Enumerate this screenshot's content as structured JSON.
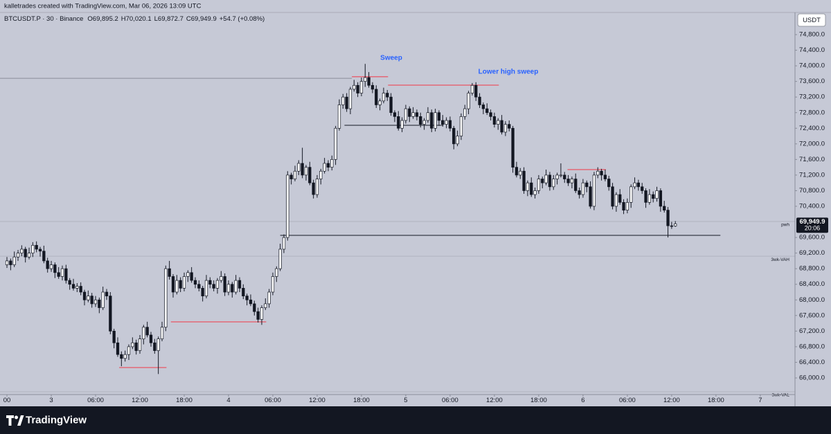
{
  "header": {
    "attribution": "kalletrades created with TradingView.com, Mar 06, 2026 13:09 UTC"
  },
  "chart_data": {
    "type": "candlestick",
    "symbol": "BTCUSDT.P · 30 · Binance",
    "ohlc_legend": [
      "O69,895.2",
      "H70,020.1",
      "L69,872.7",
      "C69,949.9",
      "+54.7 (+0.08%)"
    ],
    "currency": "USDT",
    "up_color": "#ffffff",
    "down_color": "#131722",
    "wick_color": "#131722",
    "grid": false,
    "xlim": [
      -0.94,
      106.7
    ],
    "xticks": [
      {
        "value": 0,
        "label": "00"
      },
      {
        "value": 6,
        "label": "3"
      },
      {
        "value": 12,
        "label": "06:00"
      },
      {
        "value": 18,
        "label": "12:00"
      },
      {
        "value": 24,
        "label": "18:00"
      },
      {
        "value": 30,
        "label": "4"
      },
      {
        "value": 36,
        "label": "06:00"
      },
      {
        "value": 42,
        "label": "12:00"
      },
      {
        "value": 48,
        "label": "18:00"
      },
      {
        "value": 54,
        "label": "5"
      },
      {
        "value": 60,
        "label": "06:00"
      },
      {
        "value": 66,
        "label": "12:00"
      },
      {
        "value": 72,
        "label": "18:00"
      },
      {
        "value": 78,
        "label": "6"
      },
      {
        "value": 84,
        "label": "06:00"
      },
      {
        "value": 90,
        "label": "12:00"
      },
      {
        "value": 96,
        "label": "18:00"
      },
      {
        "value": 102,
        "label": "7"
      }
    ],
    "ylim": [
      65574,
      75368
    ],
    "yticks": [
      {
        "value": 66000,
        "label": "66,000.0"
      },
      {
        "value": 66400,
        "label": "66,400.0"
      },
      {
        "value": 66800,
        "label": "66,800.0"
      },
      {
        "value": 67200,
        "label": "67,200.0"
      },
      {
        "value": 67600,
        "label": "67,600.0"
      },
      {
        "value": 68000,
        "label": "68,000.0"
      },
      {
        "value": 68400,
        "label": "68,400.0"
      },
      {
        "value": 68800,
        "label": "68,800.0"
      },
      {
        "value": 69200,
        "label": "69,200.0"
      },
      {
        "value": 69600,
        "label": "69,600.0"
      },
      {
        "value": 70400,
        "label": "70,400.0"
      },
      {
        "value": 70800,
        "label": "70,800.0"
      },
      {
        "value": 71200,
        "label": "71,200.0"
      },
      {
        "value": 71600,
        "label": "71,600.0"
      },
      {
        "value": 72000,
        "label": "72,000.0"
      },
      {
        "value": 72400,
        "label": "72,400.0"
      },
      {
        "value": 72800,
        "label": "72,800.0"
      },
      {
        "value": 73200,
        "label": "73,200.0"
      },
      {
        "value": 73600,
        "label": "73,600.0"
      },
      {
        "value": 74000,
        "label": "74,000.0"
      },
      {
        "value": 74400,
        "label": "74,400.0"
      },
      {
        "value": 74800,
        "label": "74,800.0"
      }
    ],
    "x": [
      0,
      0.5,
      1,
      1.5,
      2,
      2.5,
      3,
      3.5,
      4,
      4.5,
      5,
      5.5,
      6,
      6.5,
      7,
      7.5,
      8,
      8.5,
      9,
      9.5,
      10,
      10.5,
      11,
      11.5,
      12,
      12.5,
      13,
      13.5,
      14,
      14.5,
      15,
      15.5,
      16,
      16.5,
      17,
      17.5,
      18,
      18.5,
      19,
      19.5,
      20,
      20.5,
      21,
      21.5,
      22,
      22.5,
      23,
      23.5,
      24,
      24.5,
      25,
      25.5,
      26,
      26.5,
      27,
      27.5,
      28,
      28.5,
      29,
      29.5,
      30,
      30.5,
      31,
      31.5,
      32,
      32.5,
      33,
      33.5,
      34,
      34.5,
      35,
      35.5,
      36,
      36.5,
      37,
      37.5,
      38,
      38.5,
      39,
      39.5,
      40,
      40.5,
      41,
      41.5,
      42,
      42.5,
      43,
      43.5,
      44,
      44.5,
      45,
      45.5,
      46,
      46.5,
      47,
      47.5,
      48,
      48.5,
      49,
      49.5,
      50,
      50.5,
      51,
      51.5,
      52,
      52.5,
      53,
      53.5,
      54,
      54.5,
      55,
      55.5,
      56,
      56.5,
      57,
      57.5,
      58,
      58.5,
      59,
      59.5,
      60,
      60.5,
      61,
      61.5,
      62,
      62.5,
      63,
      63.5,
      64,
      64.5,
      65,
      65.5,
      66,
      66.5,
      67,
      67.5,
      68,
      68.5,
      69,
      69.5,
      70,
      70.5,
      71,
      71.5,
      72,
      72.5,
      73,
      73.5,
      74,
      74.5,
      75,
      75.5,
      76,
      76.5,
      77,
      77.5,
      78,
      78.5,
      79,
      79.5,
      80,
      80.5,
      81,
      81.5,
      82,
      82.5,
      83,
      83.5,
      84,
      84.5,
      85,
      85.5,
      86,
      86.5,
      87,
      87.5,
      88,
      88.5,
      89,
      89.5,
      90,
      90.5
    ],
    "open": [
      68900,
      69000,
      68900,
      69100,
      69200,
      69300,
      69100,
      69200,
      69400,
      69300,
      69250,
      69000,
      68800,
      68900,
      68700,
      68600,
      68800,
      68500,
      68400,
      68300,
      68350,
      68200,
      68000,
      68100,
      67900,
      68000,
      67800,
      68200,
      68100,
      67200,
      66900,
      66600,
      66500,
      66600,
      66800,
      66900,
      66700,
      67000,
      67300,
      67100,
      66900,
      66700,
      67000,
      67300,
      68800,
      68600,
      68200,
      68500,
      68300,
      68600,
      68700,
      68500,
      68400,
      68300,
      68100,
      68500,
      68400,
      68300,
      68500,
      68600,
      68200,
      68400,
      68200,
      68500,
      68300,
      68100,
      68000,
      67900,
      67700,
      67500,
      67800,
      67900,
      68200,
      68600,
      68800,
      69300,
      69600,
      71200,
      71100,
      71300,
      71500,
      71200,
      71400,
      71000,
      70700,
      71100,
      71300,
      71500,
      71400,
      71600,
      72400,
      73000,
      73200,
      72900,
      73400,
      73500,
      73300,
      73600,
      73700,
      73500,
      73400,
      73000,
      73100,
      73300,
      73200,
      72800,
      72700,
      72400,
      72600,
      72900,
      72700,
      72800,
      72700,
      72500,
      72600,
      72800,
      72400,
      72800,
      72600,
      72500,
      72600,
      72400,
      72000,
      72200,
      72700,
      72900,
      73300,
      73500,
      73200,
      73000,
      72900,
      72800,
      72700,
      72500,
      72600,
      72300,
      72500,
      72400,
      71400,
      71200,
      71300,
      70800,
      71000,
      70700,
      70800,
      71100,
      71000,
      71200,
      70900,
      71100,
      71200,
      71200,
      71100,
      71000,
      71100,
      70800,
      70700,
      71000,
      70900,
      70400,
      71200,
      71300,
      71200,
      71100,
      70900,
      70400,
      70700,
      70500,
      70300,
      70500,
      70900,
      71000,
      70900,
      70800,
      70500,
      70700,
      70600,
      70800,
      70400,
      70300,
      69900,
      69895.2
    ],
    "high": [
      69100,
      69060,
      69240,
      69280,
      69400,
      69360,
      69340,
      69480,
      69500,
      69360,
      69390,
      69080,
      69000,
      68960,
      68840,
      68880,
      68900,
      68560,
      68540,
      68430,
      68450,
      68260,
      68240,
      68180,
      68100,
      68060,
      68340,
      68280,
      68200,
      67260,
      67040,
      66680,
      66700,
      66860,
      67040,
      66980,
      67100,
      67360,
      67440,
      67180,
      67000,
      67060,
      67440,
      68880,
      69000,
      68660,
      68640,
      68580,
      68700,
      68760,
      68840,
      68580,
      68500,
      68360,
      68640,
      68580,
      68500,
      68560,
      68740,
      68680,
      68500,
      68460,
      68640,
      68580,
      68400,
      68160,
      68140,
      67980,
      67800,
      67860,
      68040,
      68280,
      68700,
      68860,
      69440,
      69680,
      71300,
      71260,
      71440,
      71580,
      71900,
      71460,
      71540,
      71080,
      71200,
      71360,
      71640,
      71580,
      71700,
      72460,
      73140,
      73280,
      73300,
      73460,
      73640,
      73580,
      73700,
      74050,
      73840,
      73580,
      73500,
      73160,
      73440,
      73380,
      73300,
      72860,
      72840,
      72680,
      73000,
      72960,
      72940,
      72880,
      72800,
      72660,
      72940,
      72880,
      72900,
      72860,
      72740,
      72680,
      72700,
      72460,
      72340,
      72780,
      73000,
      73360,
      73560,
      73580,
      73300,
      73060,
      73040,
      72880,
      72800,
      72660,
      72740,
      72580,
      72600,
      72460,
      71540,
      71380,
      71400,
      71060,
      71140,
      70880,
      71200,
      71160,
      71340,
      71280,
      71200,
      71260,
      71500,
      71280,
      71200,
      71160,
      71240,
      70880,
      71100,
      71060,
      71040,
      71280,
      71400,
      71360,
      71340,
      71180,
      71000,
      70760,
      70840,
      70580,
      70600,
      70960,
      71140,
      71080,
      71000,
      70860,
      70840,
      70780,
      70900,
      70860,
      70540,
      70380,
      70000,
      70020.1
    ],
    "low": [
      68820,
      68760,
      68840,
      69000,
      69120,
      68960,
      69040,
      69100,
      69220,
      69110,
      68940,
      68700,
      68720,
      68560,
      68540,
      68500,
      68420,
      68260,
      68240,
      68200,
      68120,
      67860,
      67940,
      67800,
      67820,
      67660,
      67740,
      68000,
      67120,
      66760,
      66540,
      66300,
      66420,
      66460,
      66740,
      66600,
      66620,
      66860,
      67040,
      66800,
      66620,
      66100,
      66940,
      67200,
      68520,
      68060,
      68140,
      68200,
      68220,
      68460,
      68440,
      68300,
      68220,
      67960,
      68040,
      68300,
      68220,
      68160,
      68440,
      68100,
      68120,
      68060,
      68140,
      68200,
      68020,
      67860,
      67840,
      67600,
      67420,
      67360,
      67740,
      67800,
      68120,
      68460,
      68740,
      69200,
      69520,
      70960,
      71040,
      71200,
      71120,
      71060,
      70940,
      70600,
      70620,
      70960,
      71240,
      71300,
      71320,
      71460,
      72340,
      72900,
      72820,
      72760,
      73340,
      73200,
      73220,
      73460,
      73440,
      73300,
      72920,
      72860,
      73040,
      73100,
      72720,
      72560,
      72340,
      72300,
      72520,
      72560,
      72640,
      72600,
      72420,
      72360,
      72540,
      72300,
      72320,
      72460,
      72440,
      72400,
      72320,
      71860,
      71940,
      72100,
      72620,
      72760,
      73240,
      73100,
      72920,
      72760,
      72740,
      72600,
      72420,
      72360,
      72240,
      72200,
      72320,
      71260,
      71140,
      71100,
      70720,
      70660,
      70640,
      70600,
      70720,
      70860,
      70940,
      70800,
      70820,
      70960,
      71140,
      71000,
      70920,
      70860,
      70740,
      70600,
      70620,
      70760,
      70340,
      70300,
      71120,
      71060,
      71040,
      70800,
      70320,
      70260,
      70440,
      70200,
      70220,
      70360,
      70840,
      70800,
      70720,
      70360,
      70440,
      70500,
      70520,
      70260,
      70240,
      69600,
      69820,
      69872.7
    ],
    "close": [
      69000,
      68900,
      69100,
      69200,
      69300,
      69100,
      69200,
      69400,
      69300,
      69250,
      69000,
      68800,
      68900,
      68700,
      68600,
      68800,
      68500,
      68400,
      68300,
      68350,
      68200,
      68000,
      68100,
      67900,
      68000,
      67800,
      68200,
      68100,
      67200,
      66900,
      66600,
      66500,
      66600,
      66800,
      66900,
      66700,
      67000,
      67300,
      67100,
      66900,
      66700,
      67000,
      67300,
      68800,
      68600,
      68200,
      68500,
      68300,
      68600,
      68700,
      68500,
      68400,
      68300,
      68100,
      68500,
      68400,
      68300,
      68500,
      68600,
      68200,
      68400,
      68200,
      68500,
      68300,
      68100,
      68000,
      67900,
      67700,
      67500,
      67800,
      67900,
      68200,
      68600,
      68800,
      69300,
      69600,
      71200,
      71100,
      71300,
      71500,
      71200,
      71400,
      71000,
      70700,
      71100,
      71300,
      71500,
      71400,
      71600,
      72400,
      73000,
      73200,
      72900,
      73400,
      73500,
      73300,
      73600,
      73700,
      73500,
      73400,
      73000,
      73100,
      73300,
      73200,
      72800,
      72700,
      72400,
      72600,
      72900,
      72700,
      72800,
      72700,
      72500,
      72600,
      72800,
      72400,
      72800,
      72600,
      72500,
      72600,
      72400,
      72000,
      72200,
      72700,
      72900,
      73300,
      73500,
      73200,
      73000,
      72900,
      72800,
      72700,
      72500,
      72600,
      72300,
      72500,
      72400,
      71400,
      71200,
      71300,
      70800,
      71000,
      70700,
      70800,
      71100,
      71000,
      71200,
      70900,
      71100,
      71200,
      71200,
      71100,
      71000,
      71100,
      70800,
      70700,
      71000,
      70900,
      70400,
      71200,
      71300,
      71200,
      71100,
      70900,
      70400,
      70700,
      70500,
      70300,
      70500,
      70900,
      71000,
      70900,
      70800,
      70500,
      70700,
      70600,
      70800,
      70400,
      70300,
      69900,
      69895.2,
      69949.9
    ],
    "last_price_label": "69,949.9",
    "countdown": "20:06",
    "levels": [
      {
        "value": 73680,
        "x": [
          -0.94,
          46.7
        ],
        "color": "#8a8d99"
      },
      {
        "value": 73720,
        "x": [
          46.7,
          51.6
        ],
        "color": "#f23645"
      },
      {
        "value": 73505,
        "x": [
          51.6,
          66.6
        ],
        "color": "#f23645"
      },
      {
        "value": 72476,
        "x": [
          45.7,
          59.1
        ],
        "color": "#131722"
      },
      {
        "value": 71340,
        "x": [
          75.9,
          81.1
        ],
        "color": "#f23645"
      },
      {
        "value": 67437,
        "x": [
          22.2,
          35.1
        ],
        "color": "#f23645"
      },
      {
        "value": 66266,
        "x": [
          15.2,
          21.6
        ],
        "color": "#f23645"
      },
      {
        "value": 69655,
        "x": [
          37.0,
          96.6
        ],
        "color": "#131722"
      },
      {
        "value": 70010,
        "label": "pwh",
        "color": "#b0b3bf"
      },
      {
        "value": 69120,
        "label": "3wk-VAH",
        "color": "#b0b3bf"
      },
      {
        "value": 65645,
        "label": "3wk-VAL",
        "color": "#b0b3bf"
      }
    ],
    "annotations": [
      {
        "text": "Sweep",
        "color": "#2962ff"
      },
      {
        "text": "Lower high sweep",
        "color": "#2962ff"
      }
    ]
  },
  "footer": {
    "brand": "TradingView"
  }
}
